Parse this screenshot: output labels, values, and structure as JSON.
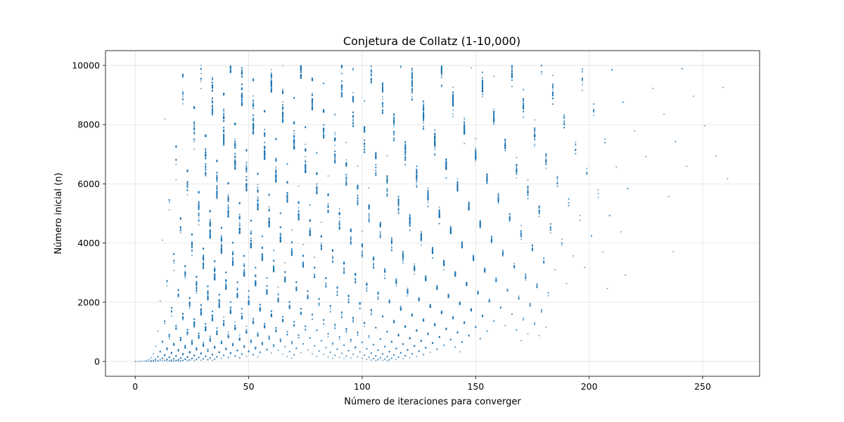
{
  "chart_data": {
    "type": "scatter",
    "title": "Conjetura de Collatz (1-10,000)",
    "xlabel": "Número de iteraciones para converger",
    "ylabel": "Número inicial (n)",
    "xlim": [
      -13.1,
      275.1
    ],
    "ylim": [
      -500,
      10500
    ],
    "xticks": [
      0,
      50,
      100,
      150,
      200,
      250
    ],
    "yticks": [
      0,
      2000,
      4000,
      6000,
      8000,
      10000
    ],
    "grid": true,
    "series": [
      {
        "color": "#1f77b4",
        "n_range": [
          1,
          10000
        ],
        "x_definition": "Collatz stopping time of n",
        "y_definition": "n"
      }
    ]
  }
}
